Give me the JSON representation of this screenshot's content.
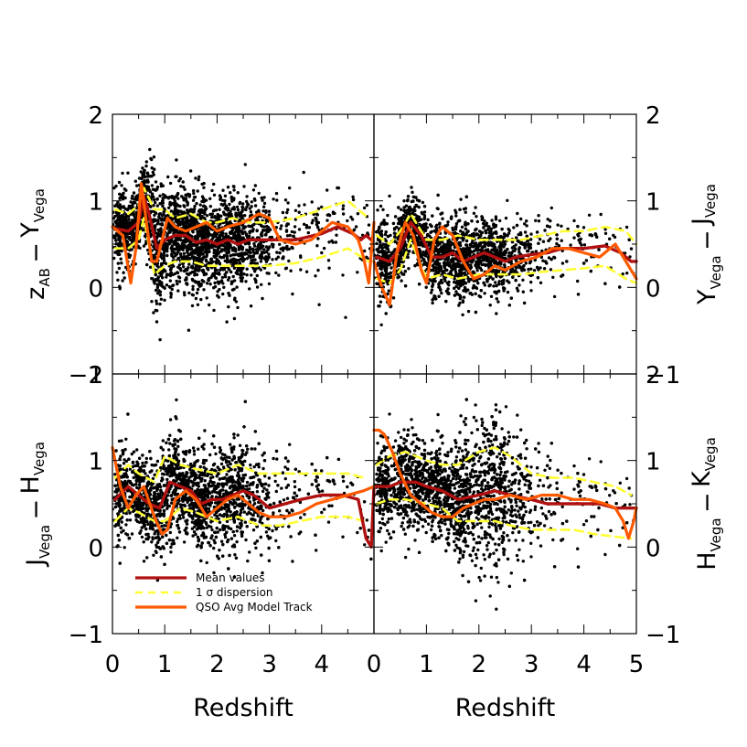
{
  "chart_data": {
    "type": "scatter",
    "xlabel": "Redshift",
    "legend": {
      "placement": "bottom-left of lower-left panel",
      "entries": [
        {
          "label": "Mean values",
          "color": "#b01010",
          "style": "solid"
        },
        {
          "label": "1 σ dispersion",
          "color": "#ffff33",
          "style": "dashed"
        },
        {
          "label": "QSO Avg Model Track",
          "color": "#ff5a00",
          "style": "solid"
        }
      ]
    },
    "colors": {
      "points": "#000000",
      "mean": "#b01010",
      "dispersion": "#ffff33",
      "model": "#ff5a00"
    },
    "panels": [
      {
        "id": "z-y",
        "position": "top-left",
        "ylabel": {
          "a": "z",
          "a_sub": "AB",
          "b": "Y",
          "b_sub": "Vega"
        },
        "ylabel_side": "left",
        "xlim": [
          0,
          5
        ],
        "ylim": [
          -1,
          2
        ],
        "xticks": [],
        "yticks": [
          -1,
          0,
          1,
          2
        ],
        "ytick_labels": [
          "−1",
          "0",
          "1",
          "2"
        ],
        "z_max": 5.0,
        "mean": {
          "x": [
            0.05,
            0.3,
            0.5,
            0.6,
            0.7,
            0.85,
            1.0,
            1.2,
            1.4,
            1.6,
            1.8,
            2.0,
            2.2,
            2.4,
            2.6,
            2.8,
            3.0,
            3.5,
            4.0,
            4.3,
            4.6,
            4.75,
            4.85,
            4.95
          ],
          "y": [
            0.68,
            0.65,
            0.75,
            1.05,
            0.85,
            0.45,
            0.55,
            0.6,
            0.6,
            0.52,
            0.55,
            0.5,
            0.55,
            0.5,
            0.55,
            0.55,
            0.55,
            0.55,
            0.62,
            0.7,
            0.62,
            0.55,
            0.6,
            0.55
          ]
        },
        "sigma_hi": {
          "x": [
            0.05,
            0.3,
            0.5,
            0.6,
            0.8,
            1.0,
            1.2,
            1.5,
            1.8,
            2.0,
            2.3,
            2.6,
            3.0,
            3.5,
            4.0,
            4.5,
            4.9
          ],
          "y": [
            0.9,
            0.85,
            0.95,
            1.15,
            0.9,
            0.9,
            0.8,
            0.85,
            0.75,
            0.75,
            0.8,
            0.75,
            0.75,
            0.8,
            0.9,
            1.0,
            0.8
          ]
        },
        "sigma_lo": {
          "x": [
            0.05,
            0.3,
            0.5,
            0.6,
            0.8,
            1.0,
            1.2,
            1.5,
            1.8,
            2.0,
            2.3,
            2.6,
            3.0,
            3.5,
            4.0,
            4.5,
            4.9
          ],
          "y": [
            0.45,
            0.45,
            0.55,
            0.8,
            0.15,
            0.25,
            0.3,
            0.3,
            0.25,
            0.25,
            0.25,
            0.25,
            0.25,
            0.28,
            0.35,
            0.45,
            0.3
          ]
        },
        "model": {
          "x": [
            0.0,
            0.2,
            0.35,
            0.45,
            0.55,
            0.65,
            0.75,
            0.85,
            0.95,
            1.05,
            1.2,
            1.4,
            1.6,
            1.8,
            2.0,
            2.2,
            2.5,
            2.8,
            3.0,
            3.2,
            3.5,
            3.8,
            4.0,
            4.2,
            4.5,
            4.7,
            4.8,
            4.9,
            5.0
          ],
          "y": [
            0.7,
            0.6,
            0.05,
            0.45,
            1.2,
            0.75,
            0.3,
            0.3,
            0.55,
            0.8,
            0.7,
            0.65,
            0.7,
            0.75,
            0.65,
            0.7,
            0.75,
            0.85,
            0.8,
            0.55,
            0.5,
            0.55,
            0.65,
            0.75,
            0.7,
            0.55,
            0.35,
            0.05,
            0.75
          ]
        }
      },
      {
        "id": "y-j",
        "position": "top-right",
        "ylabel": {
          "a": "Y",
          "a_sub": "Vega",
          "b": "J",
          "b_sub": "Vega"
        },
        "ylabel_side": "right",
        "xlim": [
          0,
          5
        ],
        "ylim": [
          -1,
          2
        ],
        "xticks": [],
        "yticks": [
          -1,
          0,
          1,
          2
        ],
        "ytick_labels": [
          "−1",
          "0",
          "1",
          "2"
        ],
        "z_max": 5.0,
        "mean": {
          "x": [
            0.05,
            0.3,
            0.5,
            0.7,
            0.9,
            1.1,
            1.3,
            1.5,
            1.7,
            1.9,
            2.1,
            2.3,
            2.5,
            2.7,
            3.0,
            3.3,
            3.6,
            4.0,
            4.4,
            4.7,
            4.9,
            5.0
          ],
          "y": [
            0.35,
            0.3,
            0.45,
            0.75,
            0.6,
            0.35,
            0.35,
            0.4,
            0.3,
            0.35,
            0.4,
            0.35,
            0.3,
            0.35,
            0.38,
            0.4,
            0.45,
            0.45,
            0.48,
            0.4,
            0.3,
            0.3
          ]
        },
        "sigma_hi": {
          "x": [
            0.05,
            0.3,
            0.5,
            0.7,
            1.0,
            1.3,
            1.6,
            2.0,
            2.4,
            2.8,
            3.2,
            3.6,
            4.0,
            4.4,
            4.8,
            5.0
          ],
          "y": [
            0.6,
            0.5,
            0.65,
            0.85,
            0.55,
            0.55,
            0.6,
            0.55,
            0.55,
            0.55,
            0.6,
            0.65,
            0.65,
            0.7,
            0.65,
            0.5
          ]
        },
        "sigma_lo": {
          "x": [
            0.05,
            0.3,
            0.5,
            0.7,
            1.0,
            1.3,
            1.6,
            2.0,
            2.4,
            2.8,
            3.2,
            3.6,
            4.0,
            4.4,
            4.8,
            5.0
          ],
          "y": [
            0.1,
            0.05,
            0.2,
            0.55,
            0.1,
            0.15,
            0.1,
            0.15,
            0.15,
            0.15,
            0.18,
            0.2,
            0.22,
            0.25,
            0.1,
            0.05
          ]
        },
        "model": {
          "x": [
            0.0,
            0.15,
            0.3,
            0.45,
            0.6,
            0.75,
            0.9,
            1.0,
            1.15,
            1.3,
            1.5,
            1.7,
            1.9,
            2.1,
            2.3,
            2.5,
            2.8,
            3.1,
            3.4,
            3.7,
            4.0,
            4.3,
            4.6,
            4.8,
            5.0
          ],
          "y": [
            0.3,
            0.0,
            -0.2,
            0.45,
            0.75,
            0.6,
            0.2,
            0.05,
            0.55,
            0.7,
            0.6,
            0.3,
            0.1,
            0.15,
            0.25,
            0.2,
            0.3,
            0.35,
            0.45,
            0.45,
            0.4,
            0.35,
            0.5,
            0.3,
            0.1
          ]
        }
      },
      {
        "id": "j-h",
        "position": "bottom-left",
        "ylabel": {
          "a": "J",
          "a_sub": "Vega",
          "b": "H",
          "b_sub": "Vega"
        },
        "ylabel_side": "left",
        "xlim": [
          0,
          5
        ],
        "ylim": [
          -1,
          2
        ],
        "xticks": [
          0,
          1,
          2,
          3,
          4
        ],
        "yticks": [
          -1,
          0,
          1,
          2
        ],
        "ytick_labels": [
          "−1",
          "0",
          "1",
          "2"
        ],
        "z_max": 5.0,
        "mean": {
          "x": [
            0.05,
            0.3,
            0.5,
            0.7,
            0.9,
            1.1,
            1.3,
            1.5,
            1.7,
            1.9,
            2.1,
            2.3,
            2.5,
            2.7,
            3.0,
            3.3,
            3.6,
            4.0,
            4.4,
            4.7,
            4.85,
            4.95,
            5.0
          ],
          "y": [
            0.55,
            0.7,
            0.6,
            0.5,
            0.45,
            0.75,
            0.7,
            0.65,
            0.5,
            0.55,
            0.55,
            0.6,
            0.65,
            0.6,
            0.45,
            0.5,
            0.55,
            0.6,
            0.6,
            0.55,
            0.1,
            0.0,
            0.7
          ]
        },
        "sigma_hi": {
          "x": [
            0.05,
            0.3,
            0.5,
            0.8,
            1.0,
            1.3,
            1.6,
            2.0,
            2.4,
            2.8,
            3.2,
            3.6,
            4.0,
            4.5,
            4.8
          ],
          "y": [
            0.8,
            0.95,
            0.85,
            0.75,
            1.05,
            0.95,
            0.9,
            0.85,
            0.95,
            0.85,
            0.85,
            0.85,
            0.85,
            0.85,
            0.8
          ]
        },
        "sigma_lo": {
          "x": [
            0.05,
            0.3,
            0.5,
            0.8,
            1.0,
            1.3,
            1.6,
            2.0,
            2.4,
            2.8,
            3.2,
            3.6,
            4.0,
            4.5,
            4.8
          ],
          "y": [
            0.3,
            0.45,
            0.4,
            0.3,
            0.3,
            0.45,
            0.4,
            0.3,
            0.35,
            0.25,
            0.25,
            0.3,
            0.35,
            0.35,
            0.3
          ]
        },
        "model": {
          "x": [
            0.0,
            0.15,
            0.3,
            0.45,
            0.6,
            0.8,
            0.95,
            1.05,
            1.2,
            1.4,
            1.6,
            1.8,
            2.0,
            2.2,
            2.4,
            2.6,
            2.8,
            3.0,
            3.3,
            3.6,
            3.9,
            4.2,
            4.5,
            4.8,
            5.0
          ],
          "y": [
            1.15,
            0.7,
            0.45,
            0.6,
            0.7,
            0.35,
            0.15,
            0.2,
            0.55,
            0.65,
            0.55,
            0.35,
            0.45,
            0.55,
            0.6,
            0.5,
            0.4,
            0.35,
            0.35,
            0.4,
            0.5,
            0.55,
            0.6,
            0.65,
            0.7
          ]
        }
      },
      {
        "id": "h-k",
        "position": "bottom-right",
        "ylabel": {
          "a": "H",
          "a_sub": "Vega",
          "b": "K",
          "b_sub": "Vega"
        },
        "ylabel_side": "right",
        "xlim": [
          0,
          5
        ],
        "ylim": [
          -1,
          2
        ],
        "xticks": [
          0,
          1,
          2,
          3,
          4,
          5
        ],
        "yticks": [
          -1,
          0,
          1,
          2
        ],
        "ytick_labels": [
          "−1",
          "0",
          "1",
          "2"
        ],
        "z_max": 5.0,
        "mean": {
          "x": [
            0.05,
            0.3,
            0.5,
            0.8,
            1.0,
            1.3,
            1.6,
            2.0,
            2.3,
            2.6,
            3.0,
            3.3,
            3.6,
            4.0,
            4.3,
            4.6,
            4.8,
            5.0
          ],
          "y": [
            0.7,
            0.7,
            0.75,
            0.75,
            0.7,
            0.65,
            0.55,
            0.6,
            0.65,
            0.6,
            0.55,
            0.5,
            0.5,
            0.5,
            0.5,
            0.45,
            0.45,
            0.45
          ]
        },
        "sigma_hi": {
          "x": [
            0.05,
            0.3,
            0.6,
            1.0,
            1.3,
            1.6,
            2.0,
            2.3,
            2.6,
            3.0,
            3.4,
            3.8,
            4.2,
            4.6,
            4.9
          ],
          "y": [
            0.95,
            1.05,
            1.1,
            1.0,
            0.95,
            0.95,
            1.1,
            1.15,
            1.05,
            0.85,
            0.8,
            0.8,
            0.75,
            0.7,
            0.6
          ]
        },
        "sigma_lo": {
          "x": [
            0.05,
            0.3,
            0.6,
            1.0,
            1.3,
            1.6,
            2.0,
            2.3,
            2.6,
            3.0,
            3.4,
            3.8,
            4.2,
            4.6,
            4.9
          ],
          "y": [
            0.5,
            0.55,
            0.55,
            0.5,
            0.45,
            0.3,
            0.3,
            0.3,
            0.25,
            0.2,
            0.2,
            0.2,
            0.15,
            0.12,
            0.1
          ]
        },
        "model": {
          "x": [
            0.0,
            0.1,
            0.2,
            0.35,
            0.5,
            0.7,
            0.9,
            1.1,
            1.3,
            1.5,
            1.7,
            1.9,
            2.1,
            2.3,
            2.6,
            2.9,
            3.2,
            3.5,
            3.8,
            4.1,
            4.4,
            4.6,
            4.75,
            4.85,
            4.95,
            5.0
          ],
          "y": [
            1.35,
            1.35,
            1.3,
            1.1,
            0.85,
            0.6,
            0.5,
            0.4,
            0.35,
            0.35,
            0.45,
            0.5,
            0.55,
            0.55,
            0.6,
            0.55,
            0.6,
            0.6,
            0.55,
            0.55,
            0.5,
            0.45,
            0.3,
            0.1,
            0.3,
            0.45
          ]
        }
      }
    ]
  }
}
